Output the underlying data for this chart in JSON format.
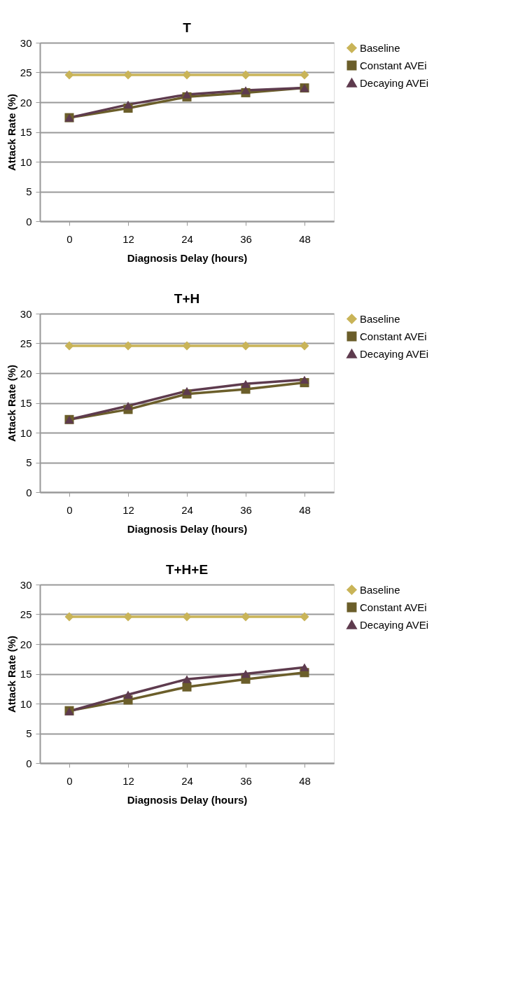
{
  "chart_data": [
    {
      "type": "line",
      "title": "T",
      "xlabel": "Diagnosis Delay (hours)",
      "ylabel": "Attack Rate (%)",
      "categories": [
        "0",
        "12",
        "24",
        "36",
        "48"
      ],
      "ylim": [
        0,
        30
      ],
      "yticks": [
        0,
        5,
        10,
        15,
        20,
        25,
        30
      ],
      "grid": "y",
      "legend": "right",
      "line_style": "solid",
      "series": [
        {
          "name": "Baseline",
          "color": "#c9b458",
          "marker": "diamond",
          "values": [
            24.6,
            24.6,
            24.6,
            24.6,
            24.6
          ]
        },
        {
          "name": "Constant AVEi",
          "color": "#6b5e2a",
          "marker": "square",
          "values": [
            17.4,
            19.0,
            20.9,
            21.6,
            22.4
          ]
        },
        {
          "name": "Decaying AVEi",
          "color": "#5e3b4e",
          "marker": "triangle",
          "values": [
            17.4,
            19.6,
            21.3,
            22.0,
            22.4
          ]
        }
      ]
    },
    {
      "type": "line",
      "title": "T+H",
      "xlabel": "Diagnosis Delay (hours)",
      "ylabel": "Attack Rate (%)",
      "categories": [
        "0",
        "12",
        "24",
        "36",
        "48"
      ],
      "ylim": [
        0,
        30
      ],
      "yticks": [
        0,
        5,
        10,
        15,
        20,
        25,
        30
      ],
      "grid": "y",
      "legend": "right",
      "line_style": "solid",
      "series": [
        {
          "name": "Baseline",
          "color": "#c9b458",
          "marker": "diamond",
          "values": [
            24.6,
            24.6,
            24.6,
            24.6,
            24.6
          ]
        },
        {
          "name": "Constant AVEi",
          "color": "#6b5e2a",
          "marker": "square",
          "values": [
            12.2,
            13.9,
            16.5,
            17.3,
            18.4
          ]
        },
        {
          "name": "Decaying AVEi",
          "color": "#5e3b4e",
          "marker": "triangle",
          "values": [
            12.2,
            14.5,
            17.0,
            18.2,
            18.9
          ]
        }
      ]
    },
    {
      "type": "line",
      "title": "T+H+E",
      "xlabel": "Diagnosis Delay (hours)",
      "ylabel": "Attack Rate (%)",
      "categories": [
        "0",
        "12",
        "24",
        "36",
        "48"
      ],
      "ylim": [
        0,
        30
      ],
      "yticks": [
        0,
        5,
        10,
        15,
        20,
        25,
        30
      ],
      "grid": "y",
      "legend": "right",
      "line_style": "solid",
      "series": [
        {
          "name": "Baseline",
          "color": "#c9b458",
          "marker": "diamond",
          "values": [
            24.6,
            24.6,
            24.6,
            24.6,
            24.6
          ]
        },
        {
          "name": "Constant AVEi",
          "color": "#6b5e2a",
          "marker": "square",
          "values": [
            8.8,
            10.6,
            12.8,
            14.1,
            15.2
          ]
        },
        {
          "name": "Decaying AVEi",
          "color": "#5e3b4e",
          "marker": "triangle",
          "values": [
            8.7,
            11.5,
            14.1,
            15.0,
            16.1
          ]
        }
      ]
    }
  ]
}
